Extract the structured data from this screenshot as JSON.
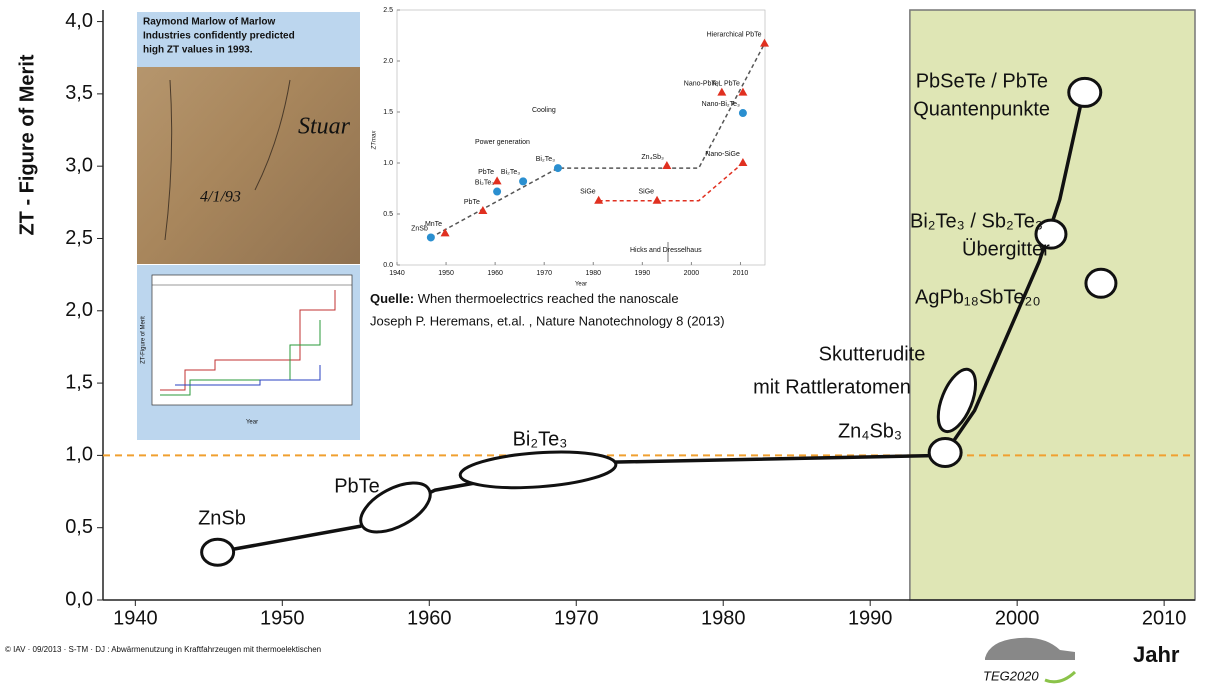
{
  "chart_data": [
    {
      "type": "line",
      "ylabel": "ZT - Figure of Merit",
      "xlabel": "Jahr",
      "xlim": [
        1937.8,
        2012.1
      ],
      "ylim": [
        0,
        4.08
      ],
      "xticks": [
        1940,
        1950,
        1960,
        1970,
        1980,
        1990,
        2000,
        2010
      ],
      "yticks": [
        {
          "value": 0,
          "label": "0,0"
        },
        {
          "value": 0.5,
          "label": "0,5"
        },
        {
          "value": 1,
          "label": "1,0"
        },
        {
          "value": 1.5,
          "label": "1,5"
        },
        {
          "value": 2,
          "label": "2,0"
        },
        {
          "value": 2.5,
          "label": "2,5"
        },
        {
          "value": 3,
          "label": "3,0"
        },
        {
          "value": 3.5,
          "label": "3,5"
        },
        {
          "value": 4,
          "label": "4,0"
        }
      ],
      "reference_line": {
        "value": 1,
        "color": "#f0a030"
      },
      "highlight_span": {
        "x": [
          1992.7,
          2012.1
        ],
        "color": "#dfe6b5"
      },
      "series": [
        {
          "color": "#111111",
          "x": [
            1946.6,
            1955.3,
            1960.4,
            1970.9,
            1995.0,
            1997.1,
            1999.5,
            2001.5,
            2002.9,
            2004.4
          ],
          "values": [
            0.35,
            0.51,
            0.76,
            0.95,
            1.0,
            1.31,
            1.87,
            2.34,
            2.77,
            3.46
          ]
        }
      ],
      "materials": [
        {
          "label": [
            "ZnSb"
          ],
          "x": 1945.6,
          "y": 0.33
        },
        {
          "label": [
            "PbTe"
          ],
          "x": 1957.7,
          "y": 0.64
        },
        {
          "label": [
            "Bi₂Te₃"
          ],
          "x": 1967.4,
          "y": 0.9
        },
        {
          "label": [
            "Zn₄Sb₃"
          ],
          "x": 1995.1,
          "y": 1.02
        },
        {
          "label": [
            "Skutterudite",
            "mit Rattleratomen"
          ],
          "x": 1995.9,
          "y": 1.38
        },
        {
          "label": [
            "Bi₂Te₃ / Sb₂Te₃",
            "Übergitter"
          ],
          "x": 2002.3,
          "y": 2.53
        },
        {
          "label": [
            "PbSeTe / PbTe",
            "Quantenpunkte"
          ],
          "x": 2004.6,
          "y": 3.51
        },
        {
          "label": [
            "AgPb₁₈SbTe₂₀"
          ],
          "x": 2005.7,
          "y": 2.19
        }
      ]
    },
    {
      "type": "scatter",
      "xlabel": "Year",
      "ylabel": "ZTmax",
      "xlim": [
        1940,
        2015
      ],
      "ylim": [
        0,
        2.5
      ],
      "xticks": [
        1940,
        1950,
        1960,
        1970,
        1980,
        1990,
        2000,
        2010
      ],
      "yticks": [
        {
          "value": 0,
          "label": "0.0"
        },
        0.5,
        {
          "value": 1,
          "label": "1.0"
        },
        1.5,
        {
          "value": 2,
          "label": "2.0"
        },
        2.5
      ],
      "annotations": [
        {
          "text": "Power generation",
          "color": "#e03020"
        },
        {
          "text": "Cooling",
          "color": "#2a8fd0"
        },
        {
          "text": "Hicks and Dresselhaus",
          "color": "#444444"
        }
      ],
      "trends": [
        {
          "color": "#555555",
          "x": [
            1946.9,
            1972.8,
            2001.5,
            2014.9
          ],
          "values": [
            0.27,
            0.95,
            0.95,
            2.17
          ]
        },
        {
          "color": "#e03020",
          "x": [
            1981.1,
            2001.5,
            2010.5
          ],
          "values": [
            0.63,
            0.63,
            1.0
          ]
        }
      ],
      "series": [
        {
          "marker": "circle",
          "color": "#2a8fd0",
          "x": [
            1946.9,
            1960.4,
            1965.7,
            1972.8,
            2010.5
          ],
          "values": [
            0.27,
            0.72,
            0.82,
            0.95,
            1.49
          ],
          "labels": [
            "ZnSb",
            "Bi₂Te₃",
            "Bi₂Te₃",
            "Bi₂Te₃",
            "Nano-Bi₂Te₃"
          ]
        },
        {
          "marker": "triangle",
          "color": "#e03020",
          "x": [
            1949.8,
            1957.5,
            1960.4,
            1981.1,
            1993.0,
            1995.0,
            2006.2,
            2010.5,
            2010.5,
            2014.9
          ],
          "values": [
            0.31,
            0.53,
            0.82,
            0.63,
            0.63,
            0.97,
            1.69,
            1.69,
            1.0,
            2.17
          ],
          "labels": [
            "MnTe",
            "PbTe",
            "PbTe",
            "SiGe",
            "SiGe",
            "Zn₄Sb₃",
            "Nano-PbTe",
            "K,L PbTe",
            "Nano-SiGe",
            "Hierarchical PbTe"
          ]
        }
      ]
    },
    {
      "type": "image",
      "photo_caption": [
        "Raymond Marlow of Marlow",
        "Industries confidently predicted",
        "high ZT values in 1993."
      ],
      "handwriting": [
        "Stuar",
        "4/1/93"
      ],
      "mini_chart": {
        "ylabel": "ZT-Figure of Merit",
        "xlabel": "Year"
      }
    }
  ],
  "source": {
    "label": "Quelle:",
    "text": " When thermoelectrics reached the nanoscale",
    "line2": "Joseph P. Heremans, et.al. , Nature Nanotechnology  8  (2013)"
  },
  "footer": "© IAV  · 09/2013  · S-TM  ·  DJ : Abwärmenutzung  in Kraftfahrzeugen  mit thermoelektischen",
  "logo": "TEG2020"
}
